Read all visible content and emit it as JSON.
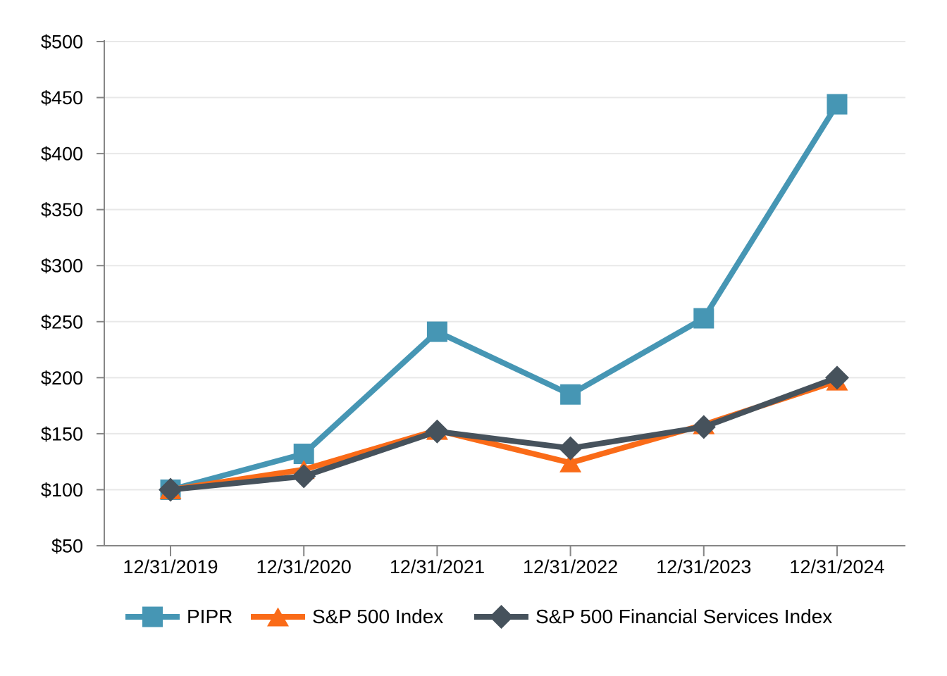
{
  "chart_data": {
    "type": "line",
    "title": "",
    "xlabel": "",
    "ylabel": "",
    "categories": [
      "12/31/2019",
      "12/31/2020",
      "12/31/2021",
      "12/31/2022",
      "12/31/2023",
      "12/31/2024"
    ],
    "series": [
      {
        "name": "PIPR",
        "marker": "square",
        "color": "#4696B4",
        "values": [
          100,
          132,
          241,
          185,
          253,
          444
        ]
      },
      {
        "name": "S&P 500 Index",
        "marker": "triangle",
        "color": "#FA6B18",
        "values": [
          100,
          118,
          153,
          124,
          158,
          197
        ]
      },
      {
        "name": "S&P 500 Financial Services Index",
        "marker": "diamond",
        "color": "#46525C",
        "values": [
          100,
          112,
          152,
          137,
          156,
          200
        ]
      }
    ],
    "y_axis": {
      "min": 50,
      "max": 500,
      "step": 50,
      "tick_prefix": "$",
      "tick_labels": [
        "$50",
        "$100",
        "$150",
        "$200",
        "$250",
        "$300",
        "$350",
        "$400",
        "$450",
        "$500"
      ]
    },
    "grid": "horizontal",
    "legend_position": "bottom",
    "ylim": [
      50,
      500
    ]
  },
  "style": {
    "background": "#FFFFFF",
    "gridline_color": "#E8E8E8",
    "axis_color": "#868686",
    "text_color": "#000000"
  }
}
